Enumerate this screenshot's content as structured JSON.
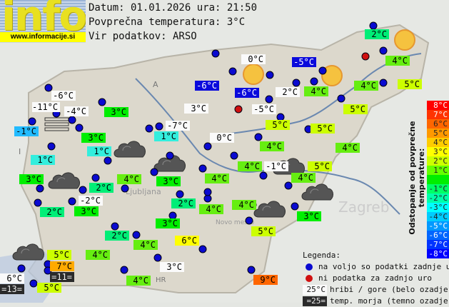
{
  "header": {
    "logo_word": "info",
    "logo_url": "www.informacije.si",
    "date_line": "Datum: 01.01.2026 ura: 21:50",
    "avg_line": "Povprečna temperatura: 3°C",
    "source_line": "Vir podatkov: ARSO"
  },
  "map_labels": [
    "A",
    "I",
    "HR",
    "Ljubljana",
    "Zagreb",
    "Novo mesto"
  ],
  "stations": [
    {
      "t": "2°C",
      "c": "#00ee77"
    },
    {
      "t": "4°C",
      "c": "#66ee11"
    },
    {
      "t": "4°C",
      "c": "#66ee11"
    },
    {
      "t": "5°C",
      "c": "#ccff00"
    },
    {
      "t": "0°C",
      "c": "white"
    },
    {
      "t": "-5°C",
      "c": "blue"
    },
    {
      "t": "-6°C",
      "c": "blue"
    },
    {
      "t": "-6°C",
      "c": "blue"
    },
    {
      "t": "2°C",
      "c": "white"
    },
    {
      "t": "4°C",
      "c": "#66ee11"
    },
    {
      "t": "3°C",
      "c": "white"
    },
    {
      "t": "-5°C",
      "c": "white"
    },
    {
      "t": "5°C",
      "c": "#ccff00"
    },
    {
      "t": "5°C",
      "c": "#ccff00"
    },
    {
      "t": "5°C",
      "c": "#ccff00"
    },
    {
      "t": "0°C",
      "c": "white"
    },
    {
      "t": "4°C",
      "c": "#66ee11"
    },
    {
      "t": "-6°C",
      "c": "white"
    },
    {
      "t": "-11°C",
      "c": "white"
    },
    {
      "t": "-4°C",
      "c": "white"
    },
    {
      "t": "-1°C",
      "c": "#22bbff"
    },
    {
      "t": "3°C",
      "c": "#00ee00"
    },
    {
      "t": "3°C",
      "c": "#00ee00"
    },
    {
      "t": "-7°C",
      "c": "white"
    },
    {
      "t": "1°C",
      "c": "#33eedd"
    },
    {
      "t": "1°C",
      "c": "#33eedd"
    },
    {
      "t": "1°C",
      "c": "#33eedd"
    },
    {
      "t": "3°C",
      "c": "#00ee00"
    },
    {
      "t": "4°C",
      "c": "#66ee11"
    },
    {
      "t": "3°C",
      "c": "#00ee00"
    },
    {
      "t": "4°C",
      "c": "#66ee11"
    },
    {
      "t": "4°C",
      "c": "#66ee11"
    },
    {
      "t": "-1°C",
      "c": "white"
    },
    {
      "t": "5°C",
      "c": "#ccff00"
    },
    {
      "t": "4°C",
      "c": "#66ee11"
    },
    {
      "t": "4°C",
      "c": "#66ee11"
    },
    {
      "t": "2°C",
      "c": "#00ee77"
    },
    {
      "t": "-2°C",
      "c": "white"
    },
    {
      "t": "2°C",
      "c": "#00ee77"
    },
    {
      "t": "3°C",
      "c": "#00ee00"
    },
    {
      "t": "2°C",
      "c": "#00ee77"
    },
    {
      "t": "4°C",
      "c": "#66ee11"
    },
    {
      "t": "4°C",
      "c": "#66ee11"
    },
    {
      "t": "4°C",
      "c": "#66ee11"
    },
    {
      "t": "3°C",
      "c": "#00ee00"
    },
    {
      "t": "3°C",
      "c": "#00ee00"
    },
    {
      "t": "5°C",
      "c": "#ccff00"
    },
    {
      "t": "6°C",
      "c": "#ffff00"
    },
    {
      "t": "2°C",
      "c": "#00ee77"
    },
    {
      "t": "4°C",
      "c": "#66ee11"
    },
    {
      "t": "5°C",
      "c": "#ccff00"
    },
    {
      "t": "7°C",
      "c": "#ffaa00"
    },
    {
      "t": "=11=",
      "c": "dark"
    },
    {
      "t": "3°C",
      "c": "white"
    },
    {
      "t": "6°C",
      "c": "white"
    },
    {
      "t": "4°C",
      "c": "#66ee11"
    },
    {
      "t": "=13=",
      "c": "dark"
    },
    {
      "t": "5°C",
      "c": "#ccff00"
    },
    {
      "t": "9°C",
      "c": "#ff6600"
    }
  ],
  "scale": {
    "title": "Odstopanje od povprečne temperature:",
    "rows": [
      {
        "t": "8°C",
        "c": "#ff0000"
      },
      {
        "t": "7°C",
        "c": "#ff3300"
      },
      {
        "t": "6°C",
        "c": "#ff6600"
      },
      {
        "t": "5°C",
        "c": "#ff9900"
      },
      {
        "t": "4°C",
        "c": "#ffcc00"
      },
      {
        "t": "3°C",
        "c": "#ffff00"
      },
      {
        "t": "2°C",
        "c": "#ccff00"
      },
      {
        "t": "1°C",
        "c": "#66ff00"
      },
      {
        "t": "",
        "c": "#00ee00"
      },
      {
        "t": "-1°C",
        "c": "#00ff66"
      },
      {
        "t": "-2°C",
        "c": "#00ffaa"
      },
      {
        "t": "-3°C",
        "c": "#00ffff"
      },
      {
        "t": "-4°C",
        "c": "#00ccff"
      },
      {
        "t": "-5°C",
        "c": "#0099ff"
      },
      {
        "t": "-6°C",
        "c": "#0066ff"
      },
      {
        "t": "-7°C",
        "c": "#0033ff"
      },
      {
        "t": "-8°C",
        "c": "#0000ff"
      }
    ]
  },
  "legend": {
    "title": "Legenda:",
    "blue_dot": "na voljo so podatki zadnje ure",
    "red_dot": "ni podatka za zadnjo uro",
    "white_sample": "25°C",
    "white_text": "hribi / gore (belo ozadje)",
    "dark_sample": "=25=",
    "dark_text": "temp. morja (temno ozadje)"
  }
}
